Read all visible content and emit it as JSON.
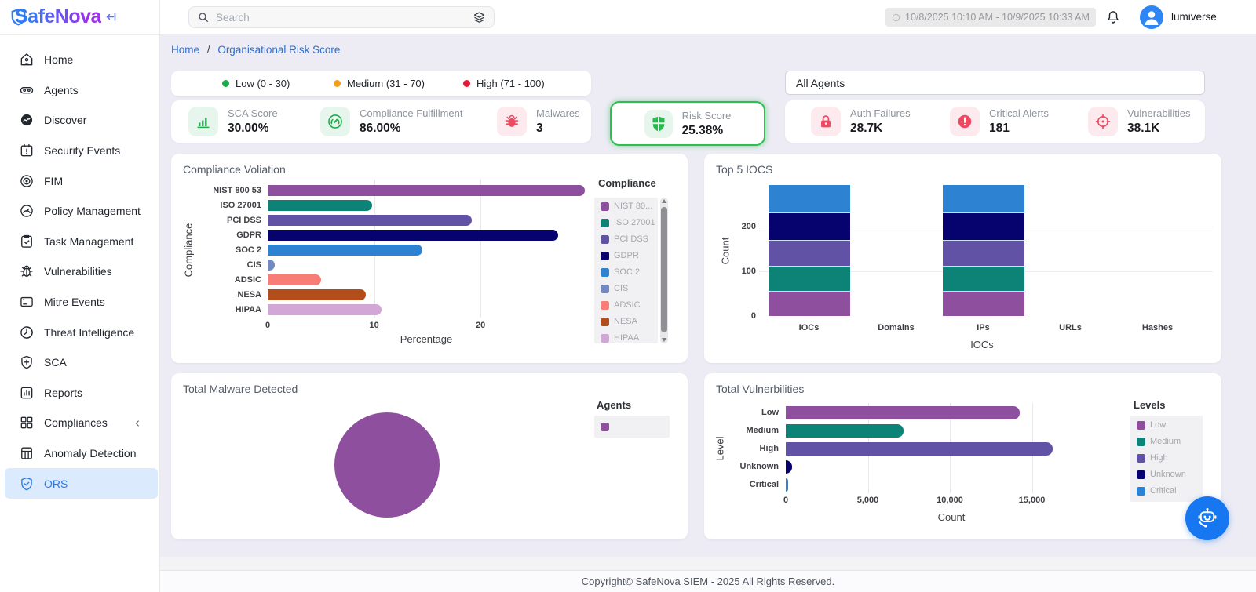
{
  "logo": {
    "brand": "SafeNova"
  },
  "topbar": {
    "search_placeholder": "Search",
    "date_range": "10/8/2025 10:10 AM - 10/9/2025 10:33 AM",
    "username": "lumiverse"
  },
  "sidebar": {
    "items": [
      {
        "label": "Home",
        "icon": "home-icon"
      },
      {
        "label": "Agents",
        "icon": "agents-icon"
      },
      {
        "label": "Discover",
        "icon": "discover-icon"
      },
      {
        "label": "Security Events",
        "icon": "security-events-icon"
      },
      {
        "label": "FIM",
        "icon": "fim-icon"
      },
      {
        "label": "Policy Management",
        "icon": "policy-icon"
      },
      {
        "label": "Task Management",
        "icon": "task-icon"
      },
      {
        "label": "Vulnerabilities",
        "icon": "bug-outline-icon"
      },
      {
        "label": "Mitre Events",
        "icon": "mitre-icon"
      },
      {
        "label": "Threat Intelligence",
        "icon": "threat-icon"
      },
      {
        "label": "SCA",
        "icon": "shield-plus-icon"
      },
      {
        "label": "Reports",
        "icon": "reports-icon"
      },
      {
        "label": "Compliances",
        "icon": "compliances-icon",
        "chevron": "left"
      },
      {
        "label": "Anomaly Detection",
        "icon": "anomaly-icon"
      },
      {
        "label": "ORS",
        "icon": "shield-check-icon",
        "active": true
      }
    ]
  },
  "breadcrumb": {
    "home": "Home",
    "separator": "/",
    "current": "Organisational Risk Score"
  },
  "risk_bands": [
    {
      "label": "Low (0 - 30)",
      "color": "#1faa4e"
    },
    {
      "label": "Medium (31 - 70)",
      "color": "#f0a020"
    },
    {
      "label": "High (71 - 100)",
      "color": "#e51937"
    }
  ],
  "agents_filter": {
    "value": "All Agents"
  },
  "stats": {
    "left": [
      {
        "label": "SCA Score",
        "value": "30.00%",
        "icon": "bar-chart-icon",
        "tone": "green"
      },
      {
        "label": "Compliance Fulfillment",
        "value": "86.00%",
        "icon": "gauge-icon",
        "tone": "green"
      },
      {
        "label": "Malwares",
        "value": "3",
        "icon": "bug-icon",
        "tone": "red"
      }
    ],
    "risk": {
      "label": "Risk Score",
      "value": "25.38%",
      "icon": "shield-cross-icon",
      "border_color": "#2ebd4e"
    },
    "right": [
      {
        "label": "Auth Failures",
        "value": "28.7K",
        "icon": "lock-icon",
        "tone": "red"
      },
      {
        "label": "Critical Alerts",
        "value": "181",
        "icon": "alert-circle-icon",
        "tone": "red"
      },
      {
        "label": "Vulnerabilities",
        "value": "38.1K",
        "icon": "crosshair-icon",
        "tone": "red"
      }
    ]
  },
  "chart_data": [
    {
      "id": "compliance_violation",
      "type": "bar",
      "orientation": "horizontal",
      "title": "Compliance Voliation",
      "categories": [
        "NIST 800 53",
        "ISO 27001",
        "PCI DSS",
        "GDPR",
        "SOC 2",
        "CIS",
        "ADSIC",
        "NESA",
        "HIPAA"
      ],
      "values": [
        29.8,
        9.8,
        19.2,
        27.3,
        14.5,
        0.7,
        5.0,
        9.2,
        10.7
      ],
      "colors": [
        "#8d4f9e",
        "#0d8276",
        "#6152a6",
        "#06036e",
        "#2d83d2",
        "#7289c4",
        "#f87d76",
        "#b34e1b",
        "#d3a6d8"
      ],
      "xlabel": "Percentage",
      "ylabel": "Compliance",
      "xticks": [
        0,
        10,
        20
      ],
      "xlim": [
        0,
        29.8
      ],
      "legend_title": "Compliance",
      "legend_labels": [
        "NIST 80...",
        "ISO 27001",
        "PCI DSS",
        "GDPR",
        "SOC 2",
        "CIS",
        "ADSIC",
        "NESA",
        "HIPAA"
      ],
      "legend_scrollbar": true
    },
    {
      "id": "top5_iocs",
      "type": "stacked-bar",
      "title": "Top 5 IOCS",
      "categories": [
        "IOCs",
        "Domains",
        "IPs",
        "URLs",
        "Hashes"
      ],
      "series": [
        {
          "color": "#8d4f9e",
          "values": [
            54,
            0,
            54,
            0,
            0
          ]
        },
        {
          "color": "#0d8276",
          "values": [
            56,
            0,
            56,
            0,
            0
          ]
        },
        {
          "color": "#6152a6",
          "values": [
            58,
            0,
            58,
            0,
            0
          ]
        },
        {
          "color": "#06036e",
          "values": [
            62,
            0,
            62,
            0,
            0
          ]
        },
        {
          "color": "#2d83d2",
          "values": [
            63,
            0,
            63,
            0,
            0
          ]
        }
      ],
      "yticks": [
        0,
        100,
        200
      ],
      "ylim": [
        0,
        293
      ],
      "xlabel": "IOCs",
      "ylabel": "Count"
    },
    {
      "id": "total_malware",
      "type": "pie",
      "title": "Total Malware Detected",
      "legend_title": "Agents",
      "slices": [
        {
          "label": "",
          "value": 3,
          "color": "#8d4f9e"
        }
      ]
    },
    {
      "id": "total_vulnerabilities",
      "type": "bar",
      "orientation": "horizontal",
      "title": "Total Vulnerbilities",
      "categories": [
        "Low",
        "Medium",
        "High",
        "Unknown",
        "Critical"
      ],
      "values": [
        14250,
        7200,
        16250,
        400,
        130
      ],
      "colors": [
        "#8d4f9e",
        "#0d8276",
        "#6152a6",
        "#06036e",
        "#2d83d2"
      ],
      "xlabel": "Count",
      "ylabel": "Level",
      "xticks": [
        0,
        5000,
        10000,
        15000
      ],
      "xtick_labels": [
        "0",
        "5,000",
        "10,000",
        "15,000"
      ],
      "xlim": [
        0,
        16900
      ],
      "legend_title": "Levels",
      "legend_labels": [
        "Low",
        "Medium",
        "High",
        "Unknown",
        "Critical"
      ]
    }
  ],
  "footer": {
    "copyright": "Copyright© SafeNova SIEM - 2025 All Rights Reserved."
  }
}
